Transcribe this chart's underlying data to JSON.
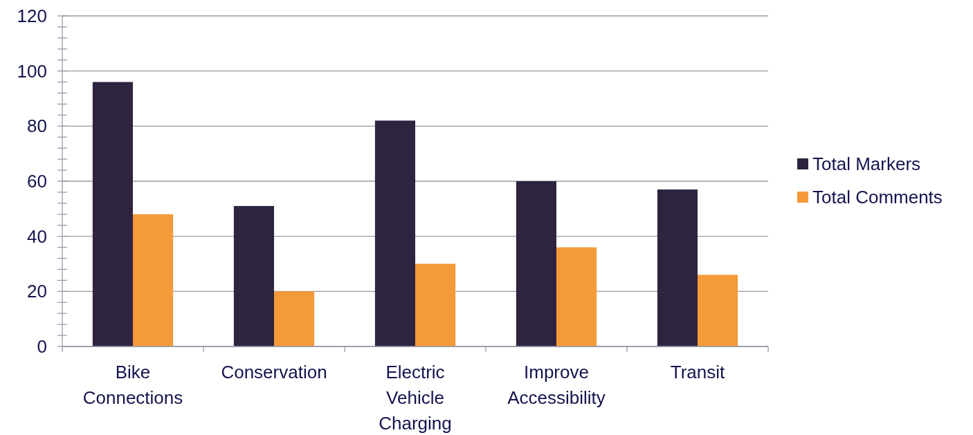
{
  "chart_data": {
    "type": "bar",
    "categories": [
      "Bike Connections",
      "Conservation",
      "Electric Vehicle Charging",
      "Improve Accessibility",
      "Transit"
    ],
    "series": [
      {
        "name": "Total Markers",
        "color": "#2e2440",
        "values": [
          96,
          51,
          82,
          60,
          57
        ]
      },
      {
        "name": "Total Comments",
        "color": "#f59a38",
        "values": [
          48,
          20,
          30,
          36,
          26
        ]
      }
    ],
    "ylim": [
      0,
      120
    ],
    "yticks": [
      0,
      {
        "value": 4,
        "label": null
      },
      {
        "value": 8,
        "label": null
      },
      {
        "value": 12,
        "label": null
      },
      {
        "value": 16,
        "label": null
      },
      20,
      {
        "value": 24,
        "label": null
      },
      {
        "value": 28,
        "label": null
      },
      {
        "value": 32,
        "label": null
      },
      {
        "value": 36,
        "label": null
      },
      40,
      {
        "value": 44,
        "label": null
      },
      {
        "value": 48,
        "label": null
      },
      {
        "value": 52,
        "label": null
      },
      {
        "value": 56,
        "label": null
      },
      60,
      {
        "value": 64,
        "label": null
      },
      {
        "value": 68,
        "label": null
      },
      {
        "value": 72,
        "label": null
      },
      {
        "value": 76,
        "label": null
      },
      80,
      {
        "value": 84,
        "label": null
      },
      {
        "value": 88,
        "label": null
      },
      {
        "value": 92,
        "label": null
      },
      {
        "value": 96,
        "label": null
      },
      100,
      {
        "value": 104,
        "label": null
      },
      {
        "value": 108,
        "label": null
      },
      {
        "value": 112,
        "label": null
      },
      {
        "value": 116,
        "label": null
      },
      120
    ],
    "grid": "y",
    "legend": "right"
  }
}
